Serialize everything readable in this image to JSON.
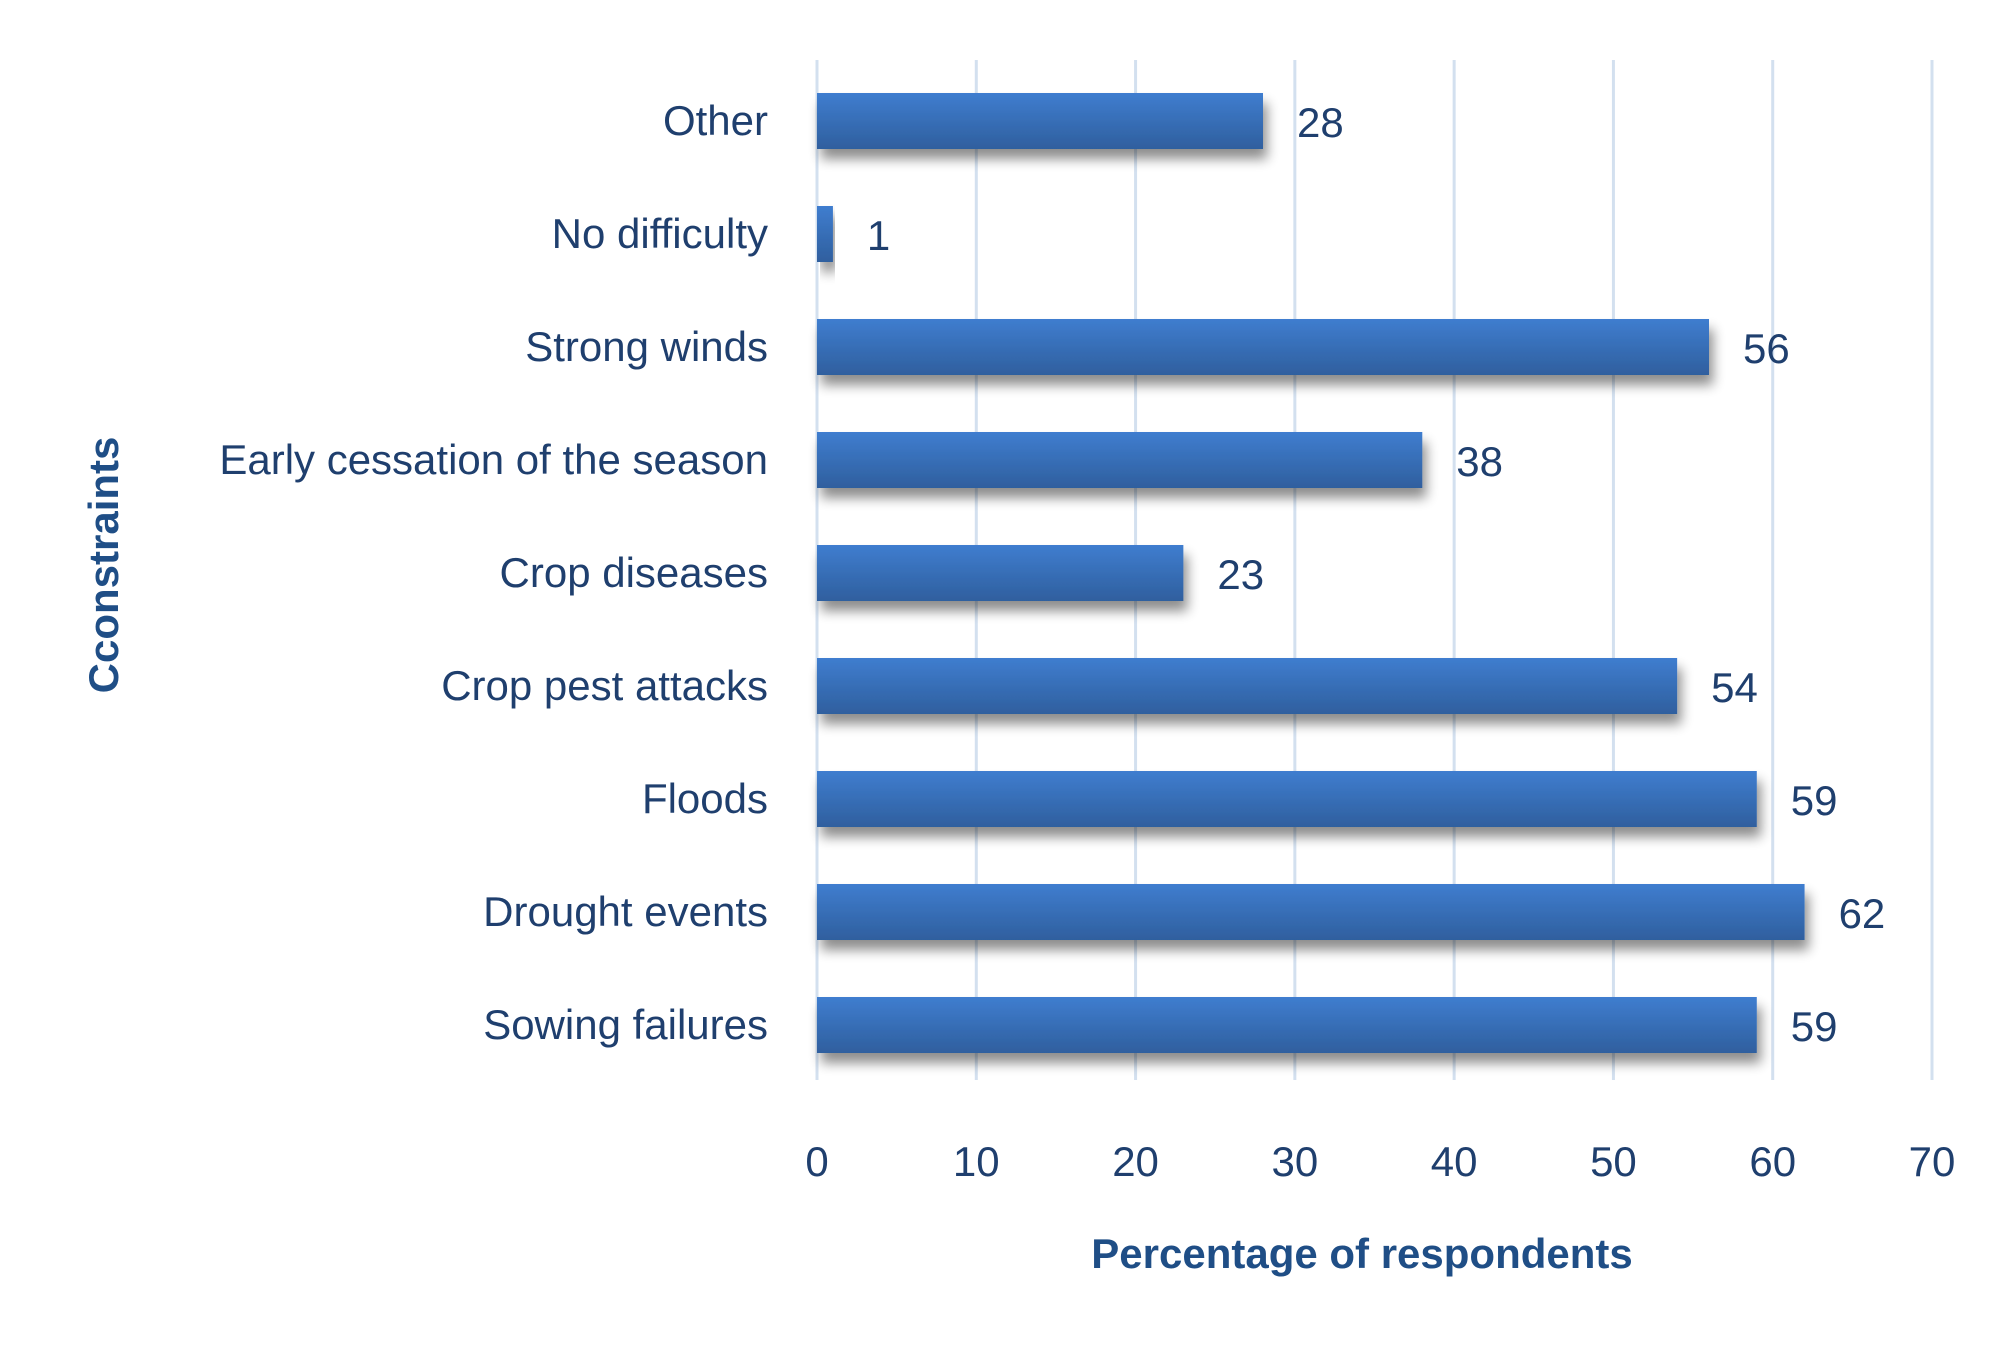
{
  "chart_data": {
    "type": "bar",
    "orientation": "horizontal",
    "title": "",
    "xlabel": "Percentage of respondents",
    "ylabel": "Cconstraints",
    "categories": [
      "Other",
      "No difficulty",
      "Strong winds",
      "Early cessation of the season",
      "Crop diseases",
      "Crop pest attacks",
      "Floods",
      "Drought events",
      "Sowing failures"
    ],
    "values": [
      28,
      1,
      56,
      38,
      23,
      54,
      59,
      62,
      59
    ],
    "value_labels": [
      "28",
      "1",
      "56",
      "38",
      "23",
      "54",
      "59",
      "62",
      "59"
    ],
    "xlim": [
      0,
      70
    ],
    "xticks": [
      0,
      10,
      20,
      30,
      40,
      50,
      60,
      70
    ],
    "xtick_labels": [
      "0",
      "10",
      "20",
      "30",
      "40",
      "50",
      "60",
      "70"
    ],
    "grid": "vertical",
    "legend": "none",
    "colors": {
      "bar_top": "#3f7dcf",
      "bar_bottom": "#2f5f9e",
      "text": "#1f3f6e",
      "axis_title": "#1f4e86",
      "grid": "#d3e0ef"
    }
  }
}
